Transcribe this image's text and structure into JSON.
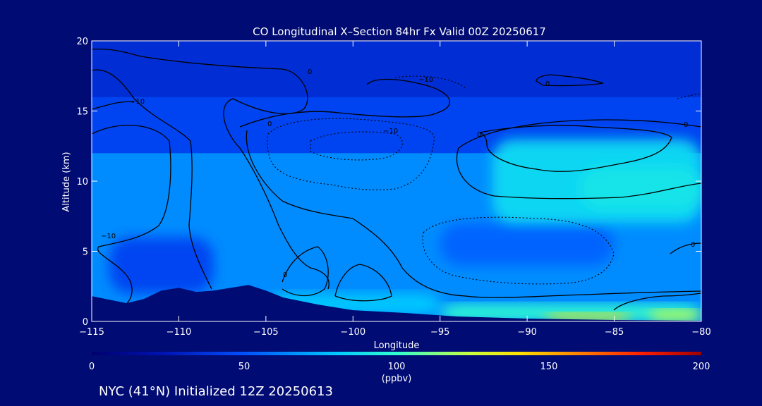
{
  "title": "CO Longitudinal X–Section 84hr  Fx Valid 00Z 20250617",
  "footer": "NYC (41°N) Initialized 12Z 20250613",
  "chart_data": {
    "type": "heatmap",
    "title": "CO Longitudinal X–Section 84hr  Fx Valid 00Z 20250617",
    "xlabel": "Longitude",
    "ylabel": "Altitude (km)",
    "xlim": [
      -115,
      -80
    ],
    "ylim": [
      0,
      20
    ],
    "x_ticks": [
      -115,
      -110,
      -105,
      -100,
      -95,
      -90,
      -85,
      -80
    ],
    "x_tick_labels": [
      "−115",
      "−110",
      "−105",
      "−100",
      "−95",
      "−90",
      "−85",
      "−80"
    ],
    "y_ticks": [
      0,
      5,
      10,
      15,
      20
    ],
    "y_tick_labels": [
      "0",
      "5",
      "10",
      "15",
      "20"
    ],
    "colorbar": {
      "label": "(ppbv)",
      "min": 0,
      "max": 200,
      "ticks": [
        0,
        50,
        100,
        150,
        200
      ],
      "tick_labels": [
        "0",
        "50",
        "100",
        "150",
        "200"
      ]
    },
    "contour_labels": [
      "0",
      "−10",
      "−10",
      "0",
      "−10",
      "0",
      "0",
      "0",
      "−10",
      "0",
      "0"
    ],
    "regions": [
      {
        "lon": [
          -115,
          -80
        ],
        "alt": [
          16,
          20
        ],
        "value": 35
      },
      {
        "lon": [
          -115,
          -80
        ],
        "alt": [
          12,
          16
        ],
        "value": 45
      },
      {
        "lon": [
          -115,
          -80
        ],
        "alt": [
          0,
          12
        ],
        "value": 65
      },
      {
        "lon": [
          -114,
          -108
        ],
        "alt": [
          2,
          6
        ],
        "value": 45
      },
      {
        "lon": [
          -95,
          -85
        ],
        "alt": [
          4,
          7
        ],
        "value": 55
      },
      {
        "lon": [
          -92,
          -80
        ],
        "alt": [
          7,
          13
        ],
        "value": 85
      },
      {
        "lon": [
          -87,
          -80
        ],
        "alt": [
          8,
          11
        ],
        "value": 90
      },
      {
        "lon": [
          -105,
          -95
        ],
        "alt": [
          0.5,
          2
        ],
        "value": 80
      },
      {
        "lon": [
          -95,
          -80
        ],
        "alt": [
          0.1,
          1.2
        ],
        "value": 100
      },
      {
        "lon": [
          -89,
          -84
        ],
        "alt": [
          0.1,
          0.6
        ],
        "value": 140
      },
      {
        "lon": [
          -83,
          -80
        ],
        "alt": [
          0.1,
          0.8
        ],
        "value": 125
      }
    ],
    "terrain": [
      [
        -115,
        1.8
      ],
      [
        -113,
        1.3
      ],
      [
        -112,
        1.6
      ],
      [
        -111,
        2.2
      ],
      [
        -110,
        2.4
      ],
      [
        -109,
        2.1
      ],
      [
        -108,
        2.2
      ],
      [
        -107,
        2.4
      ],
      [
        -106,
        2.6
      ],
      [
        -105,
        2.2
      ],
      [
        -104,
        1.7
      ],
      [
        -102,
        1.2
      ],
      [
        -100,
        0.8
      ],
      [
        -97,
        0.6
      ],
      [
        -94,
        0.35
      ],
      [
        -90,
        0.2
      ],
      [
        -85,
        0.1
      ],
      [
        -80,
        0.05
      ]
    ]
  }
}
